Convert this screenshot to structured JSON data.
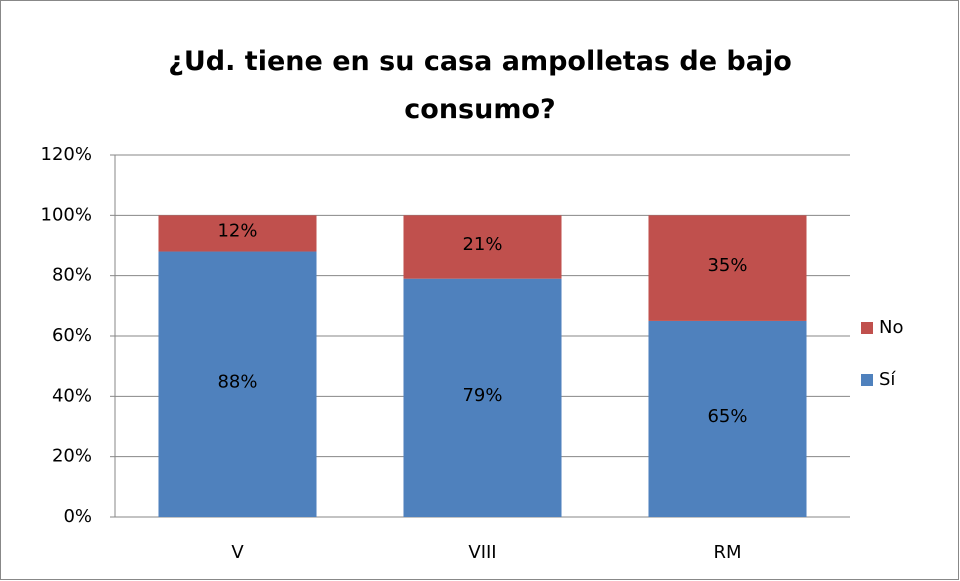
{
  "chart_data": {
    "type": "stacked_bar",
    "title": "¿Ud. tiene en su casa ampolletas de bajo consumo?",
    "categories": [
      "V",
      "VIII",
      "RM"
    ],
    "series": [
      {
        "name": "Sí",
        "color": "#4f81bd",
        "values": [
          88,
          79,
          65
        ],
        "value_labels": [
          "88%",
          "79%",
          "65%"
        ]
      },
      {
        "name": "No",
        "color": "#c0504d",
        "values": [
          12,
          21,
          35
        ],
        "value_labels": [
          "12%",
          "21%",
          "35%"
        ]
      }
    ],
    "ylim": [
      0,
      120
    ],
    "yticks": [
      {
        "value": 0,
        "label": "0%"
      },
      {
        "value": 20,
        "label": "20%"
      },
      {
        "value": 40,
        "label": "40%"
      },
      {
        "value": 60,
        "label": "60%"
      },
      {
        "value": 80,
        "label": "80%"
      },
      {
        "value": 100,
        "label": "100%"
      },
      {
        "value": 120,
        "label": "120%"
      }
    ],
    "grid": true,
    "legend": "right"
  }
}
